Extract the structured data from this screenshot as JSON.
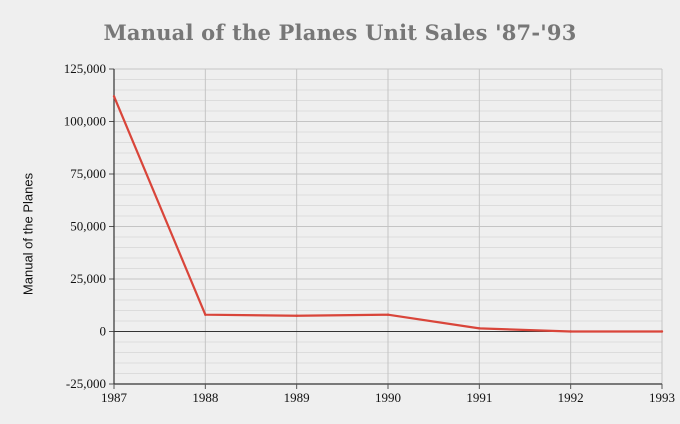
{
  "chart_data": {
    "type": "line",
    "title": "Manual of the Planes Unit Sales '87-'93",
    "xlabel": "",
    "ylabel": "Manual of the Planes",
    "x": [
      "1987",
      "1988",
      "1989",
      "1990",
      "1991",
      "1992",
      "1993"
    ],
    "series": [
      {
        "values": [
          112000,
          8000,
          7500,
          8000,
          1500,
          0,
          0
        ],
        "color": "#d9453a"
      }
    ],
    "ylim": [
      -25000,
      125000
    ],
    "yticks": [
      -25000,
      0,
      25000,
      50000,
      75000,
      100000,
      125000
    ],
    "ytick_labels": [
      "-25,000",
      "0",
      "25,000",
      "50,000",
      "75,000",
      "100,000",
      "125,000"
    ],
    "grid": true,
    "legend": "none"
  }
}
